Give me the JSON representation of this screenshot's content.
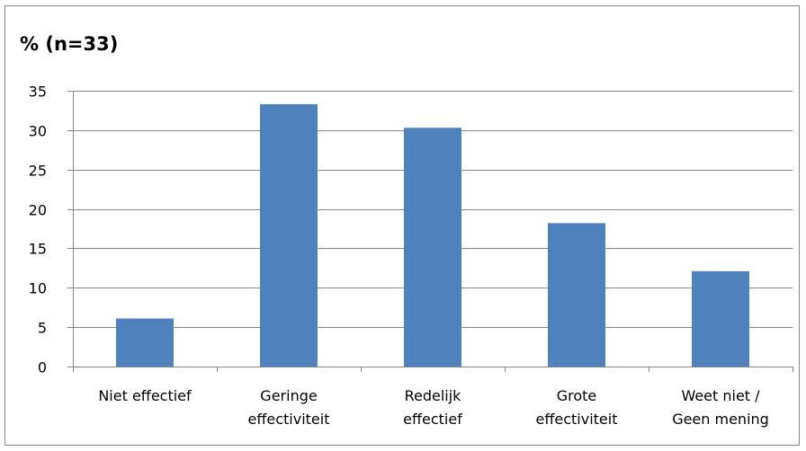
{
  "chart_data": {
    "type": "bar",
    "title": "% (n=33)",
    "xlabel": "",
    "ylabel": "",
    "ylim": [
      0,
      35
    ],
    "yticks": [
      0,
      5,
      10,
      15,
      20,
      25,
      30,
      35
    ],
    "grid": true,
    "legend": "none",
    "bar_color": "#4F81BD",
    "categories": [
      [
        "Niet effectief"
      ],
      [
        "Geringe",
        "effectiviteit"
      ],
      [
        "Redelijk",
        "effectief"
      ],
      [
        "Grote",
        "effectiviteit"
      ],
      [
        "Weet niet /",
        "Geen mening"
      ]
    ],
    "values": [
      6.1,
      33.3,
      30.3,
      18.2,
      12.1
    ]
  }
}
